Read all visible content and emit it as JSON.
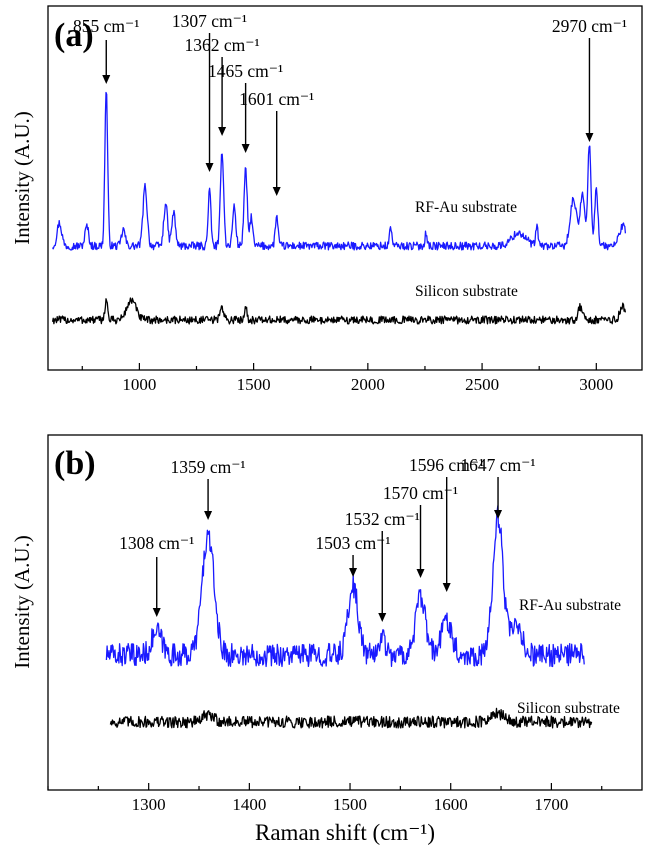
{
  "colors": {
    "rf_au": "#1a1aff",
    "silicon": "#000000",
    "axes": "#000000"
  },
  "chart_data": [
    {
      "panel": "(a)",
      "type": "line",
      "ylabel": "Intensity (A.U.)",
      "xlim": [
        600,
        3200
      ],
      "x_ticks": [
        1000,
        1500,
        2000,
        2500,
        3000
      ],
      "y_ticks_labeled": false,
      "series": [
        {
          "name": "RF-Au substrate",
          "color": "#1a1aff",
          "x_range": [
            620,
            3130
          ],
          "baseline": 0.42,
          "noise": 0.012,
          "peaks": [
            {
              "x": 650,
              "h": 0.07,
              "w": 10
            },
            {
              "x": 770,
              "h": 0.06,
              "w": 8
            },
            {
              "x": 855,
              "h": 0.48,
              "w": 6
            },
            {
              "x": 930,
              "h": 0.05,
              "w": 8
            },
            {
              "x": 1025,
              "h": 0.18,
              "w": 9
            },
            {
              "x": 1115,
              "h": 0.13,
              "w": 8
            },
            {
              "x": 1150,
              "h": 0.1,
              "w": 8
            },
            {
              "x": 1307,
              "h": 0.17,
              "w": 6
            },
            {
              "x": 1362,
              "h": 0.29,
              "w": 7
            },
            {
              "x": 1415,
              "h": 0.12,
              "w": 7
            },
            {
              "x": 1465,
              "h": 0.23,
              "w": 7
            },
            {
              "x": 1490,
              "h": 0.09,
              "w": 6
            },
            {
              "x": 1601,
              "h": 0.09,
              "w": 6
            },
            {
              "x": 2100,
              "h": 0.06,
              "w": 5
            },
            {
              "x": 2255,
              "h": 0.04,
              "w": 5
            },
            {
              "x": 2660,
              "h": 0.04,
              "w": 30
            },
            {
              "x": 2740,
              "h": 0.06,
              "w": 5
            },
            {
              "x": 2900,
              "h": 0.14,
              "w": 14
            },
            {
              "x": 2940,
              "h": 0.16,
              "w": 10
            },
            {
              "x": 2970,
              "h": 0.31,
              "w": 7
            },
            {
              "x": 3000,
              "h": 0.17,
              "w": 7
            },
            {
              "x": 3115,
              "h": 0.06,
              "w": 15
            }
          ],
          "label": "RF-Au substrate"
        },
        {
          "name": "Silicon substrate",
          "color": "#000000",
          "x_range": [
            620,
            3130
          ],
          "baseline": 0.14,
          "noise": 0.012,
          "peaks": [
            {
              "x": 855,
              "h": 0.06,
              "w": 6
            },
            {
              "x": 965,
              "h": 0.06,
              "w": 20
            },
            {
              "x": 1360,
              "h": 0.04,
              "w": 8
            },
            {
              "x": 1465,
              "h": 0.04,
              "w": 6
            },
            {
              "x": 2930,
              "h": 0.04,
              "w": 10
            },
            {
              "x": 3115,
              "h": 0.04,
              "w": 12
            }
          ],
          "label": "Silicon substrate"
        }
      ],
      "annotations": [
        {
          "x": 855,
          "label": "855 cm⁻¹"
        },
        {
          "x": 1307,
          "label": "1307 cm⁻¹"
        },
        {
          "x": 1362,
          "label": "1362 cm⁻¹"
        },
        {
          "x": 1465,
          "label": "1465 cm⁻¹"
        },
        {
          "x": 1601,
          "label": "1601 cm⁻¹"
        },
        {
          "x": 2970,
          "label": "2970 cm⁻¹"
        }
      ]
    },
    {
      "panel": "(b)",
      "type": "line",
      "ylabel": "Intensity (A.U.)",
      "xlabel": "Raman shift (cm⁻¹)",
      "xlim": [
        1200,
        1790
      ],
      "x_ticks": [
        1300,
        1400,
        1500,
        1600,
        1700
      ],
      "y_ticks_labeled": false,
      "series": [
        {
          "name": "RF-Au substrate",
          "color": "#1a1aff",
          "x_range": [
            1258,
            1733
          ],
          "baseline": 0.33,
          "noise": 0.035,
          "peaks": [
            {
              "x": 1308,
              "h": 0.07,
              "w": 5
            },
            {
              "x": 1359,
              "h": 0.36,
              "w": 6
            },
            {
              "x": 1503,
              "h": 0.21,
              "w": 5
            },
            {
              "x": 1532,
              "h": 0.06,
              "w": 3
            },
            {
              "x": 1570,
              "h": 0.17,
              "w": 5
            },
            {
              "x": 1596,
              "h": 0.11,
              "w": 5
            },
            {
              "x": 1647,
              "h": 0.42,
              "w": 5
            },
            {
              "x": 1665,
              "h": 0.08,
              "w": 6
            }
          ],
          "label": "RF-Au substrate"
        },
        {
          "name": "Silicon substrate",
          "color": "#000000",
          "x_range": [
            1262,
            1740
          ],
          "baseline": 0.13,
          "noise": 0.018,
          "peaks": [
            {
              "x": 1359,
              "h": 0.02,
              "w": 6
            },
            {
              "x": 1647,
              "h": 0.025,
              "w": 6
            }
          ],
          "label": "Silicon substrate"
        }
      ],
      "annotations": [
        {
          "x": 1308,
          "label": "1308 cm⁻¹"
        },
        {
          "x": 1359,
          "label": "1359 cm⁻¹"
        },
        {
          "x": 1503,
          "label": "1503 cm⁻¹"
        },
        {
          "x": 1532,
          "label": "1532 cm⁻¹"
        },
        {
          "x": 1570,
          "label": "1570 cm⁻¹"
        },
        {
          "x": 1596,
          "label": "1596 cm⁻¹"
        },
        {
          "x": 1647,
          "label": "1647 cm⁻¹"
        }
      ]
    }
  ]
}
